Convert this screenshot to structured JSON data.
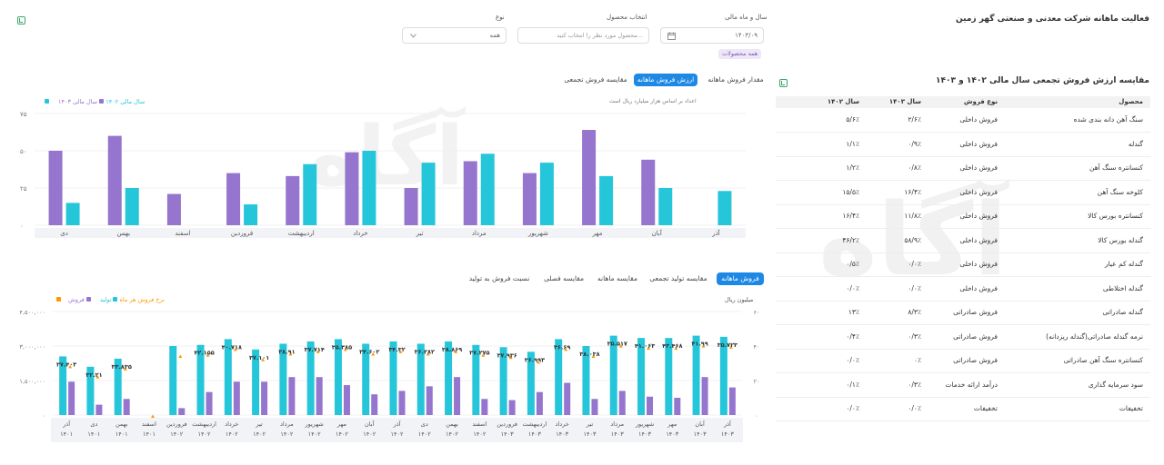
{
  "header": {
    "title": "فعالیت ماهانه شرکت معدنی و صنعتی گهر زمین"
  },
  "filters": {
    "date_label": "سال و ماه مالی",
    "date_value": "۱۴۰۳/۰۹",
    "product_label": "انتخاب محصول",
    "product_placeholder": "محصول مورد نظر را انتخاب کنید...",
    "type_label": "نوع",
    "type_value": "همه",
    "all_products_chip": "همه محصولات"
  },
  "top_chart": {
    "tabs": [
      "مقدار فروش ماهانه",
      "ارزش فروش ماهانه",
      "مقایسه فروش تجمعی"
    ],
    "active_tab": 1,
    "note": "اعداد بر اساس هزار میلیارد ریال است",
    "legend": [
      "سال مالی ۱۴۰۳",
      "سال مالی ۱۴۰۲"
    ],
    "legend_colors": [
      "#9575cd",
      "#26c6da"
    ]
  },
  "bottom_chart": {
    "tabs": [
      "فروش ماهانه",
      "مقایسه تولید تجمعی",
      "مقایسه ماهانه",
      "مقایسه فصلی",
      "نسبت فروش به تولید"
    ],
    "active_tab": 0,
    "left_unit": "",
    "right_unit": "میلیون ریال",
    "legend": [
      "فروش",
      "تولید",
      "نرخ فروش هر ماه"
    ],
    "legend_colors": [
      "#9575cd",
      "#26c6da",
      "#ff9800"
    ]
  },
  "table": {
    "title": "مقایسه ارزش فروش تجمعی سال مالی ۱۴۰۲ و ۱۴۰۳",
    "headers": [
      "محصول",
      "نوع فروش",
      "سال ۱۴۰۳",
      "سال ۱۴۰۲"
    ],
    "rows": [
      [
        "سنگ آهن دانه بندی شده",
        "فروش داخلی",
        "۲/۶٪",
        "۵/۶٪"
      ],
      [
        "گندله",
        "فروش داخلی",
        "۰/۹٪",
        "۱/۱٪"
      ],
      [
        "کنسانتره سنگ آهن",
        "فروش داخلی",
        "۰/۸٪",
        "۱/۲٪"
      ],
      [
        "کلوخه سنگ آهن",
        "فروش داخلی",
        "۱۶/۴٪",
        "۱۵/۵٪"
      ],
      [
        "کنسانتره بورس کالا",
        "فروش داخلی",
        "۱۱/۸٪",
        "۱۶/۴٪"
      ],
      [
        "گندله بورس کالا",
        "فروش داخلی",
        "۵۸/۹٪",
        "۴۶/۲٪"
      ],
      [
        "گندله کم عیار",
        "فروش داخلی",
        "۰/۰٪",
        "۰/۵٪"
      ],
      [
        "گندله اختلاطی",
        "فروش داخلی",
        "۰/۰٪",
        "۰/۰٪"
      ],
      [
        "گندله صادراتی",
        "فروش صادراتی",
        "۸/۳٪",
        "۱۳٪"
      ],
      [
        "نرمه گندله صادراتی(گندله ریزدانه)",
        "فروش صادراتی",
        "۰/۳٪",
        "۰/۴٪"
      ],
      [
        "کنسانتره سنگ آهن صادراتی",
        "فروش صادراتی",
        "۰٪",
        "۰/۰٪"
      ],
      [
        "سود سرمایه گذاری",
        "درآمد ارائه خدمات",
        "۰/۳٪",
        "۰/۱٪"
      ],
      [
        "تخفیفات",
        "تخفیفات",
        "۰/۰٪",
        "۰/۰٪"
      ]
    ]
  },
  "chart_data": [
    {
      "type": "bar",
      "title": "",
      "categories": [
        "آذر",
        "آبان",
        "مهر",
        "شهریور",
        "مرداد",
        "تیر",
        "خرداد",
        "اردیبهشت",
        "فروردین",
        "اسفند",
        "بهمن",
        "دی"
      ],
      "yticks": [
        "۰",
        "۲۵",
        "۵۰",
        "۷۵"
      ],
      "ylim": [
        0,
        75
      ],
      "series": [
        {
          "name": "سال مالی ۱۴۰۲",
          "color": "#26c6da",
          "values": [
            23,
            25,
            33,
            42,
            48,
            42,
            50,
            41,
            14,
            0,
            25,
            15
          ]
        },
        {
          "name": "سال مالی ۱۴۰۳",
          "color": "#9575cd",
          "values": [
            0,
            44,
            64,
            35,
            43,
            25,
            49,
            33,
            35,
            21,
            60,
            50
          ]
        }
      ]
    },
    {
      "type": "bar",
      "title": "",
      "categories": [
        "آذر ۱۴۰۳",
        "آبان ۱۴۰۳",
        "مهر ۱۴۰۳",
        "شهریور ۱۴۰۳",
        "مرداد ۱۴۰۳",
        "تیر ۱۴۰۳",
        "خرداد ۱۴۰۳",
        "اردیبهشت ۱۴۰۳",
        "فروردین ۱۴۰۳",
        "اسفند ۱۴۰۲",
        "بهمن ۱۴۰۲",
        "دی ۱۴۰۲",
        "آذر ۱۴۰۲",
        "آبان ۱۴۰۲",
        "مهر ۱۴۰۲",
        "شهریور ۱۴۰۲",
        "مرداد ۱۴۰۲",
        "تیر ۱۴۰۲",
        "خرداد ۱۴۰۲",
        "اردیبهشت ۱۴۰۲",
        "فروردین ۱۴۰۲",
        "اسفند ۱۴۰۱",
        "بهمن ۱۴۰۱",
        "دی ۱۴۰۱",
        "آذر ۱۴۰۱"
      ],
      "left_yticks": [
        "۰",
        "۱,۵۰۰,۰۰۰",
        "۳,۰۰۰,۰۰۰",
        "۴,۵۰۰,۰۰۰"
      ],
      "left_ylim": [
        0,
        4500000
      ],
      "right_yticks": [
        "۰",
        "۲۰",
        "۴۰",
        "۶۰"
      ],
      "right_ylim": [
        0,
        60
      ],
      "series": [
        {
          "name": "تولید",
          "color": "#26c6da",
          "values": [
            3400000,
            3450000,
            3350000,
            3350000,
            3450000,
            3000000,
            3300000,
            2750000,
            2950000,
            3050000,
            3200000,
            3100000,
            3200000,
            3100000,
            3300000,
            3200000,
            3100000,
            2850000,
            3300000,
            3050000,
            3000000,
            0,
            2450000,
            2100000,
            2550000
          ]
        },
        {
          "name": "فروش",
          "color": "#9575cd",
          "values": [
            1200000,
            1650000,
            750000,
            800000,
            1050000,
            700000,
            1400000,
            1000000,
            650000,
            700000,
            1650000,
            1250000,
            1050000,
            900000,
            1300000,
            1650000,
            1650000,
            1450000,
            1450000,
            1000000,
            300000,
            0,
            700000,
            450000,
            1450000
          ]
        }
      ],
      "labels": [
        "۳۵.۷۲۳",
        "۴۱.۹۹",
        "۴۳.۴۶۸",
        "۴۱.۰۶۳",
        "۳۵.۵۱۷",
        "۳۸.۰۳۸",
        "۳۶.۶۹",
        "۳۶.۹۹۳",
        "۳۷.۹۳۶",
        "۳۷.۲۷۵",
        "۳۸.۸۶۹",
        "۳۶.۲۸۲",
        "۳۴.۳۲",
        "۳۴.۶۰۲",
        "۳۵.۳۸۵",
        "۳۷.۷۱۴",
        "۲۸.۹۱",
        "۳۷.۱۰۱",
        "۴۰.۷۱۸",
        "۴۲.۱۵۵",
        "",
        "",
        "۳۳.۸۳۵",
        "۳۲.۲۱",
        "۳۷.۴۰۳"
      ]
    }
  ],
  "watermark": {
    "brand": "آگاه"
  }
}
